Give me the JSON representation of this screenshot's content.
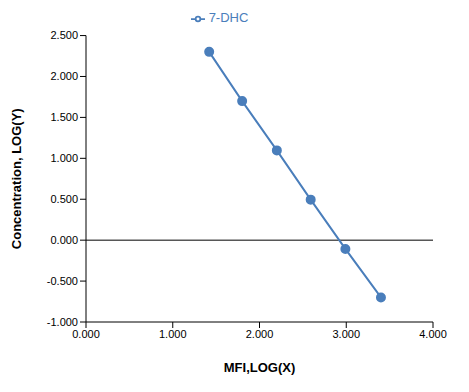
{
  "chart_data": {
    "type": "line",
    "x_label": "MFI,LOG(X)",
    "y_label": "Concentration, LOG(Y)",
    "x": [
      1.42,
      1.8,
      2.2,
      2.59,
      2.99,
      3.4
    ],
    "series": [
      {
        "name": "7-DHC",
        "color": "#4a7ebb",
        "marker": "circle",
        "values": [
          2.301,
          1.699,
          1.097,
          0.495,
          -0.107,
          -0.7
        ]
      }
    ],
    "xlim": [
      0,
      4
    ],
    "xticks": [
      {
        "value": 0,
        "label": "0.000"
      },
      {
        "value": 1,
        "label": "1.000"
      },
      {
        "value": 2,
        "label": "2.000"
      },
      {
        "value": 3,
        "label": "3.000"
      },
      {
        "value": 4,
        "label": "4.000"
      }
    ],
    "ylim": [
      -1,
      2.5
    ],
    "yticks": [
      {
        "value": -1,
        "label": "-1.000"
      },
      {
        "value": -0.5,
        "label": "-0.500"
      },
      {
        "value": 0,
        "label": "0.000"
      },
      {
        "value": 0.5,
        "label": "0.500"
      },
      {
        "value": 1,
        "label": "1.000"
      },
      {
        "value": 1.5,
        "label": "1.500"
      },
      {
        "value": 2,
        "label": "2.000"
      },
      {
        "value": 2.5,
        "label": "2.500"
      }
    ],
    "grid": false,
    "legend": "top"
  }
}
